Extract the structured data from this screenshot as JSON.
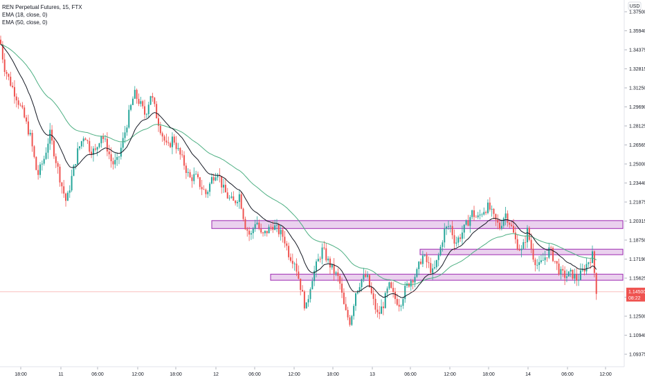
{
  "legend": {
    "symbol_line": "REN Perpetual Futures, 15, FTX",
    "ema_fast": "EMA (18, close, 0)",
    "ema_slow": "EMA (50, close, 0)"
  },
  "currency": "USD",
  "price_label": "1.14500",
  "countdown": "08:22",
  "colors": {
    "up": "#26a69a",
    "down": "#ef5350",
    "ema_fast": "#131722",
    "ema_slow": "#4caf82",
    "zone_fill": "#e1bee7",
    "zone_border": "#9c27b0",
    "price_line": "#ef5350"
  },
  "chart_data": {
    "type": "candlestick",
    "y_ticks": [
      "1.37500",
      "1.35940",
      "1.34375",
      "1.32815",
      "1.31250",
      "1.29690",
      "1.28125",
      "1.26565",
      "1.25000",
      "1.23440",
      "1.21875",
      "1.20315",
      "1.18750",
      "1.17190",
      "1.15625",
      "1.14060",
      "1.12500",
      "1.10940",
      "1.09375"
    ],
    "y_range": [
      1.0855,
      1.3815
    ],
    "x_ticks": [
      "18:00",
      "11",
      "06:00",
      "12:00",
      "18:00",
      "12",
      "06:00",
      "12:00",
      "18:00",
      "13",
      "06:00",
      "12:00",
      "18:00",
      "14",
      "06:00",
      "12:00"
    ],
    "last_price": 1.145,
    "zones": [
      {
        "low": 1.197,
        "high": 1.2035,
        "from_tick": "18:00",
        "to_end": true
      },
      {
        "low": 1.1755,
        "high": 1.18,
        "from_tick": "06:00",
        "to_end": true
      },
      {
        "low": 1.1545,
        "high": 1.1595,
        "from_tick": "06:00",
        "to_end": true
      }
    ],
    "path": [
      [
        0,
        1.352
      ],
      [
        6,
        1.33
      ],
      [
        14,
        1.318
      ],
      [
        24,
        1.305
      ],
      [
        34,
        1.29
      ],
      [
        44,
        1.272
      ],
      [
        54,
        1.24
      ],
      [
        64,
        1.255
      ],
      [
        72,
        1.275
      ],
      [
        80,
        1.255
      ],
      [
        88,
        1.235
      ],
      [
        96,
        1.218
      ],
      [
        104,
        1.24
      ],
      [
        112,
        1.26
      ],
      [
        122,
        1.275
      ],
      [
        130,
        1.262
      ],
      [
        138,
        1.26
      ],
      [
        146,
        1.275
      ],
      [
        154,
        1.265
      ],
      [
        162,
        1.25
      ],
      [
        170,
        1.252
      ],
      [
        178,
        1.27
      ],
      [
        186,
        1.29
      ],
      [
        194,
        1.308
      ],
      [
        202,
        1.3
      ],
      [
        210,
        1.29
      ],
      [
        218,
        1.308
      ],
      [
        226,
        1.29
      ],
      [
        234,
        1.275
      ],
      [
        242,
        1.262
      ],
      [
        250,
        1.272
      ],
      [
        258,
        1.26
      ],
      [
        266,
        1.25
      ],
      [
        274,
        1.238
      ],
      [
        282,
        1.24
      ],
      [
        290,
        1.232
      ],
      [
        298,
        1.225
      ],
      [
        306,
        1.238
      ],
      [
        314,
        1.245
      ],
      [
        322,
        1.23
      ],
      [
        330,
        1.222
      ],
      [
        338,
        1.218
      ],
      [
        346,
        1.225
      ],
      [
        354,
        1.2
      ],
      [
        362,
        1.19
      ],
      [
        370,
        1.205
      ],
      [
        378,
        1.19
      ],
      [
        386,
        1.195
      ],
      [
        394,
        1.2
      ],
      [
        402,
        1.195
      ],
      [
        410,
        1.19
      ],
      [
        418,
        1.175
      ],
      [
        426,
        1.17
      ],
      [
        434,
        1.15
      ],
      [
        442,
        1.13
      ],
      [
        450,
        1.155
      ],
      [
        458,
        1.168
      ],
      [
        466,
        1.18
      ],
      [
        474,
        1.17
      ],
      [
        482,
        1.162
      ],
      [
        490,
        1.155
      ],
      [
        498,
        1.13
      ],
      [
        506,
        1.12
      ],
      [
        514,
        1.145
      ],
      [
        522,
        1.155
      ],
      [
        530,
        1.158
      ],
      [
        538,
        1.14
      ],
      [
        546,
        1.125
      ],
      [
        554,
        1.135
      ],
      [
        562,
        1.15
      ],
      [
        570,
        1.14
      ],
      [
        578,
        1.135
      ],
      [
        586,
        1.148
      ],
      [
        594,
        1.155
      ],
      [
        602,
        1.16
      ],
      [
        610,
        1.175
      ],
      [
        618,
        1.168
      ],
      [
        626,
        1.16
      ],
      [
        634,
        1.175
      ],
      [
        642,
        1.195
      ],
      [
        650,
        1.2
      ],
      [
        658,
        1.185
      ],
      [
        666,
        1.192
      ],
      [
        674,
        1.2
      ],
      [
        682,
        1.21
      ],
      [
        690,
        1.205
      ],
      [
        698,
        1.212
      ],
      [
        706,
        1.215
      ],
      [
        714,
        1.205
      ],
      [
        722,
        1.198
      ],
      [
        730,
        1.21
      ],
      [
        738,
        1.2
      ],
      [
        746,
        1.185
      ],
      [
        754,
        1.178
      ],
      [
        762,
        1.195
      ],
      [
        770,
        1.175
      ],
      [
        778,
        1.165
      ],
      [
        786,
        1.172
      ],
      [
        794,
        1.18
      ],
      [
        802,
        1.17
      ],
      [
        810,
        1.16
      ],
      [
        818,
        1.158
      ],
      [
        826,
        1.16
      ],
      [
        834,
        1.155
      ],
      [
        842,
        1.162
      ],
      [
        850,
        1.17
      ],
      [
        856,
        1.175
      ],
      [
        862,
        1.145
      ]
    ]
  }
}
